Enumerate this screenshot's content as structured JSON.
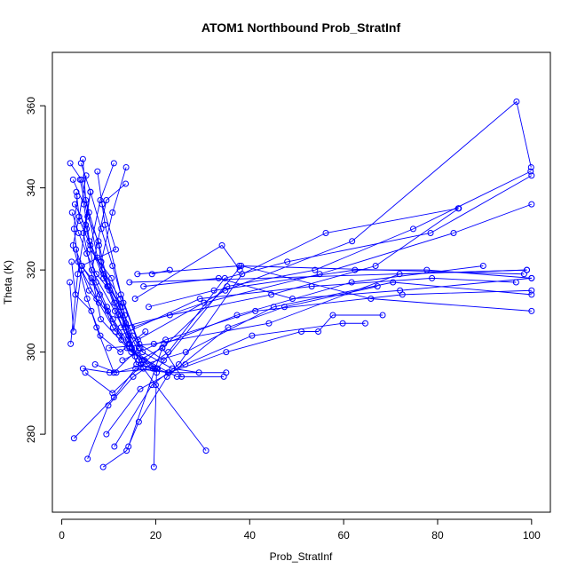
{
  "chart_data": {
    "type": "line",
    "title": "ATOM1 Northbound Prob_StratInf",
    "xlabel": "Prob_StratInf",
    "ylabel": "Theta (K)",
    "xlim": [
      -2,
      104
    ],
    "ylim": [
      261,
      373
    ],
    "xticks": [
      0,
      20,
      40,
      60,
      80,
      100
    ],
    "yticks": [
      280,
      300,
      320,
      340,
      360
    ],
    "grid": false,
    "legend": "none",
    "marker": "open-circle",
    "color": "#0000ff",
    "series": [
      {
        "points": [
          [
            1.8,
            346
          ],
          [
            4.2,
            342
          ],
          [
            5.8,
            334
          ],
          [
            7.9,
            326
          ],
          [
            8.6,
            320
          ],
          [
            12.5,
            313
          ],
          [
            13.4,
            309
          ],
          [
            15.1,
            304
          ],
          [
            17.2,
            300
          ],
          [
            23.5,
            296
          ],
          [
            29.2,
            295
          ]
        ]
      },
      {
        "points": [
          [
            2.4,
            342
          ],
          [
            4.7,
            336
          ],
          [
            5.9,
            327
          ],
          [
            8.9,
            319
          ],
          [
            11.2,
            312
          ],
          [
            13.6,
            306
          ],
          [
            16.4,
            298
          ],
          [
            21.4,
            301
          ],
          [
            25.5,
            294
          ]
        ]
      },
      {
        "points": [
          [
            3.1,
            339
          ],
          [
            3.8,
            332
          ],
          [
            6.1,
            326
          ],
          [
            8.9,
            318
          ],
          [
            12.5,
            311
          ],
          [
            14.2,
            304
          ],
          [
            16.8,
            297
          ],
          [
            22.6,
            295
          ],
          [
            35,
            295
          ]
        ]
      },
      {
        "points": [
          [
            4.5,
            347
          ],
          [
            5.1,
            337
          ],
          [
            7.6,
            323
          ],
          [
            9.7,
            316
          ],
          [
            11.9,
            309
          ],
          [
            14.5,
            302
          ],
          [
            17.4,
            296
          ],
          [
            20,
            292
          ],
          [
            30.7,
            276
          ]
        ]
      },
      {
        "points": [
          [
            2.2,
            334
          ],
          [
            3.6,
            329
          ],
          [
            5.3,
            324
          ],
          [
            7.4,
            319
          ],
          [
            10.2,
            315
          ],
          [
            12.6,
            309
          ],
          [
            14.9,
            301
          ],
          [
            20.2,
            296
          ],
          [
            19.6,
            272
          ]
        ]
      },
      {
        "points": [
          [
            1.9,
            302
          ],
          [
            3.4,
            319
          ],
          [
            5.1,
            331
          ],
          [
            6.1,
            339
          ],
          [
            4.6,
            329
          ],
          [
            8.3,
            308
          ],
          [
            14.8,
            300
          ],
          [
            24.5,
            294
          ],
          [
            34.5,
            294
          ]
        ]
      },
      {
        "points": [
          [
            2.6,
            279
          ],
          [
            11.1,
            289
          ],
          [
            15.7,
            296
          ],
          [
            22.8,
            295
          ],
          [
            35,
            300
          ],
          [
            51,
            305
          ],
          [
            54.6,
            305
          ],
          [
            57.7,
            309
          ],
          [
            68.3,
            309
          ]
        ]
      },
      {
        "points": [
          [
            8.8,
            272
          ],
          [
            13.8,
            276
          ],
          [
            16.4,
            283
          ],
          [
            22.4,
            294
          ],
          [
            35.4,
            306
          ],
          [
            47.4,
            311
          ],
          [
            67.2,
            316
          ]
        ]
      },
      {
        "points": [
          [
            5.5,
            274
          ],
          [
            9.9,
            287
          ],
          [
            15.2,
            294
          ],
          [
            22.7,
            300
          ],
          [
            34.7,
            318
          ],
          [
            48,
            322
          ],
          [
            78.5,
            329
          ],
          [
            100,
            343
          ]
        ]
      },
      {
        "points": [
          [
            11.2,
            277
          ],
          [
            19.2,
            292
          ],
          [
            24.9,
            297
          ],
          [
            38.4,
            319
          ],
          [
            56.2,
            329
          ],
          [
            84.4,
            335
          ]
        ]
      },
      {
        "points": [
          [
            14.2,
            277
          ],
          [
            21.4,
            301
          ],
          [
            35.2,
            316
          ],
          [
            53.9,
            320
          ],
          [
            74.8,
            330
          ],
          [
            99.8,
            344
          ]
        ]
      },
      {
        "points": [
          [
            9.5,
            280
          ],
          [
            16.7,
            291
          ],
          [
            26.3,
            297
          ],
          [
            40.5,
            304
          ],
          [
            59.8,
            307
          ],
          [
            64.6,
            307
          ]
        ]
      },
      {
        "points": [
          [
            4.5,
            296
          ],
          [
            10.2,
            295
          ],
          [
            20.4,
            296
          ],
          [
            38.2,
            321
          ],
          [
            65.8,
            313
          ],
          [
            100,
            310
          ]
        ]
      },
      {
        "points": [
          [
            5,
            295
          ],
          [
            10.8,
            290
          ],
          [
            21.8,
            302
          ],
          [
            37.3,
            309
          ],
          [
            61.7,
            317
          ],
          [
            89.7,
            321
          ]
        ]
      },
      {
        "points": [
          [
            7.1,
            297
          ],
          [
            11.6,
            295
          ],
          [
            26.4,
            300
          ],
          [
            45.1,
            311
          ],
          [
            70.5,
            317
          ],
          [
            100,
            314
          ]
        ]
      },
      {
        "points": [
          [
            12.9,
            298
          ],
          [
            22.1,
            303
          ],
          [
            41.2,
            310
          ],
          [
            72.5,
            314
          ],
          [
            100,
            315
          ]
        ]
      },
      {
        "points": [
          [
            10,
            301
          ],
          [
            19.6,
            302
          ],
          [
            44.1,
            307
          ],
          [
            71.9,
            319
          ],
          [
            99,
            320
          ]
        ]
      },
      {
        "points": [
          [
            12.3,
            304
          ],
          [
            29.4,
            313
          ],
          [
            53.2,
            316
          ],
          [
            78.8,
            318
          ],
          [
            96.7,
            317
          ]
        ]
      },
      {
        "points": [
          [
            14.4,
            317
          ],
          [
            99,
            320
          ]
        ]
      },
      {
        "points": [
          [
            16.1,
            319
          ],
          [
            37.8,
            321
          ],
          [
            98.4,
            319
          ]
        ]
      },
      {
        "points": [
          [
            17.4,
            316
          ],
          [
            33.4,
            318
          ],
          [
            49.1,
            313
          ],
          [
            72,
            315
          ],
          [
            100,
            318
          ]
        ]
      },
      {
        "points": [
          [
            18.5,
            311
          ],
          [
            32.4,
            315
          ],
          [
            62.4,
            320
          ],
          [
            77.7,
            320
          ],
          [
            100,
            318
          ]
        ]
      },
      {
        "points": [
          [
            15.6,
            313
          ],
          [
            34.1,
            326
          ],
          [
            37.9,
            320
          ]
        ]
      },
      {
        "points": [
          [
            19.2,
            319
          ],
          [
            23,
            320
          ]
        ]
      },
      {
        "points": [
          [
            12.6,
            306
          ],
          [
            23,
            309
          ],
          [
            44.6,
            314
          ],
          [
            66.8,
            321
          ],
          [
            84.5,
            335
          ]
        ]
      },
      {
        "points": [
          [
            14.9,
            306
          ],
          [
            30.3,
            312
          ],
          [
            54.9,
            319
          ],
          [
            83.4,
            329
          ],
          [
            100,
            336
          ]
        ]
      },
      {
        "points": [
          [
            16.2,
            303
          ],
          [
            34.8,
            315
          ],
          [
            61.8,
            327
          ],
          [
            96.8,
            361
          ],
          [
            99.9,
            345
          ]
        ]
      },
      {
        "points": [
          [
            7.6,
            344
          ],
          [
            9.2,
            331
          ],
          [
            12.6,
            314
          ],
          [
            16.5,
            302
          ],
          [
            21.7,
            298
          ]
        ]
      },
      {
        "points": [
          [
            2.8,
            336
          ],
          [
            5.3,
            330
          ],
          [
            7.3,
            317
          ],
          [
            9.6,
            311
          ],
          [
            13.9,
            301
          ],
          [
            17.6,
            298
          ]
        ]
      },
      {
        "points": [
          [
            11.1,
            346
          ],
          [
            8.2,
            337
          ],
          [
            6,
            325
          ],
          [
            10.6,
            318
          ],
          [
            15.9,
            297
          ],
          [
            19.4,
            296
          ]
        ]
      },
      {
        "points": [
          [
            13.7,
            345
          ],
          [
            10.8,
            334
          ],
          [
            8.4,
            322
          ],
          [
            13.6,
            307
          ],
          [
            17.1,
            298
          ],
          [
            20.2,
            295
          ]
        ]
      },
      {
        "points": [
          [
            13.6,
            341
          ],
          [
            9.5,
            337
          ],
          [
            6.4,
            320
          ],
          [
            11.3,
            310
          ],
          [
            14.1,
            303
          ]
        ]
      },
      {
        "points": [
          [
            5.2,
            343
          ],
          [
            3.7,
            333
          ],
          [
            2.4,
            326
          ],
          [
            5.4,
            313
          ],
          [
            7.4,
            306
          ],
          [
            11.1,
            295
          ],
          [
            16.4,
            301
          ]
        ]
      },
      {
        "points": [
          [
            8.6,
            336
          ],
          [
            11.5,
            325
          ],
          [
            4.2,
            321
          ],
          [
            6.3,
            318
          ],
          [
            8.1,
            314
          ],
          [
            10.9,
            306
          ],
          [
            14.4,
            301
          ],
          [
            19.8,
            296
          ]
        ]
      },
      {
        "points": [
          [
            2.1,
            322
          ],
          [
            2.9,
            314
          ],
          [
            6.3,
            310
          ],
          [
            8.2,
            304
          ],
          [
            12.5,
            300
          ],
          [
            17.8,
            305
          ]
        ]
      },
      {
        "points": [
          [
            1.7,
            317
          ],
          [
            2.5,
            305
          ],
          [
            4.2,
            320
          ],
          [
            7.4,
            313
          ],
          [
            10.9,
            308
          ],
          [
            14.3,
            302
          ]
        ]
      },
      {
        "points": [
          [
            3.3,
            338
          ],
          [
            2.6,
            330
          ],
          [
            3.5,
            322
          ],
          [
            5.8,
            315
          ],
          [
            7.9,
            312
          ],
          [
            11.4,
            305
          ]
        ]
      },
      {
        "points": [
          [
            3,
            325
          ],
          [
            4.3,
            321
          ],
          [
            6.5,
            317
          ],
          [
            9.8,
            310
          ],
          [
            12.7,
            303
          ]
        ]
      },
      {
        "points": [
          [
            3.9,
            342
          ],
          [
            5.5,
            333
          ],
          [
            7.8,
            327
          ],
          [
            9.9,
            316
          ],
          [
            12.9,
            311
          ],
          [
            15.6,
            299
          ]
        ]
      },
      {
        "points": [
          [
            4.1,
            346
          ],
          [
            6.1,
            339
          ],
          [
            8.4,
            330
          ],
          [
            10.8,
            321
          ],
          [
            13.1,
            312
          ],
          [
            16.7,
            301
          ]
        ]
      }
    ]
  }
}
